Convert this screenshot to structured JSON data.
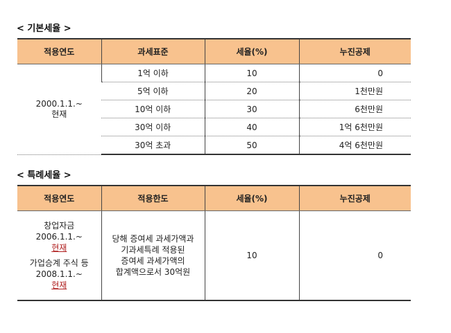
{
  "basic": {
    "title": "< 기본세율 >",
    "headers": [
      "적용연도",
      "과세표준",
      "세율(%)",
      "누진공제"
    ],
    "period": [
      "2000.1.1.~",
      "현재"
    ],
    "rows": [
      [
        "1억 이하",
        "10",
        "0"
      ],
      [
        "5억 이하",
        "20",
        "1천만원"
      ],
      [
        "10억 이하",
        "30",
        "6천만원"
      ],
      [
        "30억 이하",
        "40",
        "1억 6천만원"
      ],
      [
        "30억 초과",
        "50",
        "4억 6천만원"
      ]
    ]
  },
  "special": {
    "title": "< 특례세율 >",
    "headers": [
      "적용연도",
      "적용한도",
      "세율(%)",
      "누진공제"
    ],
    "period": [
      "창업자금",
      "2006.1.1.~",
      "현재",
      "가업승계 주식 등",
      "2008.1.1.~",
      "현재"
    ],
    "limit": [
      "당해 증여세 과세가액과",
      "기과세특례 적용된",
      "증여세 과세가액의",
      "합계액으로서 30억원"
    ],
    "rate": "10",
    "deduction": "0"
  },
  "colors": {
    "header": "#F8C28E",
    "link": "#b02020"
  }
}
